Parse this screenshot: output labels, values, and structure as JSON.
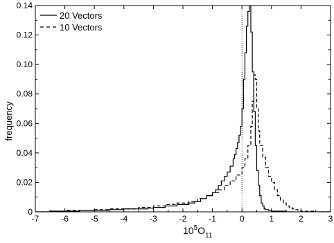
{
  "chart_data": {
    "type": "line",
    "title": "",
    "xlabel_base": "10",
    "xlabel_exp": "5",
    "xlabel_main": "O",
    "xlabel_sub": "11",
    "ylabel": "frequency",
    "xlim": [
      -7,
      3
    ],
    "ylim": [
      0,
      0.14
    ],
    "xticks": [
      -7,
      -6,
      -5,
      -4,
      -3,
      -2,
      -1,
      0,
      1,
      2,
      3
    ],
    "xtick_labels": [
      "-7",
      "-6",
      "-5",
      "-4",
      "-3",
      "-2",
      "-1",
      "0",
      "1",
      "2",
      "3"
    ],
    "yticks": [
      0,
      0.02,
      0.04,
      0.06,
      0.08,
      0.1,
      0.12,
      0.14
    ],
    "ytick_labels": [
      "0",
      "0.02",
      "0.04",
      "0.06",
      "0.08",
      "0.10",
      "0.12",
      "0.14"
    ],
    "legend_position": "top-left",
    "reference_line_x": 0,
    "series": [
      {
        "name": "20 Vectors",
        "style": "solid",
        "color": "#000000",
        "x": [
          -7,
          -6.5,
          -6,
          -5.5,
          -5,
          -4.5,
          -4,
          -3.5,
          -3.2,
          -3.0,
          -2.8,
          -2.6,
          -2.4,
          -2.2,
          -2.0,
          -1.8,
          -1.6,
          -1.4,
          -1.2,
          -1.0,
          -0.9,
          -0.8,
          -0.7,
          -0.6,
          -0.5,
          -0.4,
          -0.3,
          -0.25,
          -0.2,
          -0.15,
          -0.1,
          -0.05,
          0.0,
          0.05,
          0.1,
          0.15,
          0.2,
          0.25,
          0.3,
          0.35,
          0.4,
          0.45,
          0.5,
          0.55,
          0.6,
          0.65,
          0.7,
          0.75,
          0.8,
          0.9,
          1.0,
          1.2,
          1.5,
          2.0,
          2.5,
          3.0
        ],
        "y": [
          0,
          0.0005,
          0.0005,
          0.001,
          0.001,
          0.0015,
          0.002,
          0.002,
          0.0025,
          0.003,
          0.003,
          0.004,
          0.004,
          0.005,
          0.005,
          0.006,
          0.007,
          0.009,
          0.011,
          0.013,
          0.015,
          0.018,
          0.021,
          0.024,
          0.027,
          0.031,
          0.036,
          0.039,
          0.043,
          0.047,
          0.052,
          0.058,
          0.07,
          0.09,
          0.108,
          0.126,
          0.136,
          0.14,
          0.122,
          0.095,
          0.068,
          0.045,
          0.028,
          0.018,
          0.011,
          0.006,
          0.004,
          0.002,
          0.0015,
          0.001,
          0.0005,
          0.0005,
          0,
          0,
          0,
          0
        ]
      },
      {
        "name": "10 Vectors",
        "style": "dashed",
        "color": "#000000",
        "x": [
          -7,
          -6.5,
          -6,
          -5.5,
          -5,
          -4.5,
          -4,
          -3.5,
          -3.0,
          -2.6,
          -2.2,
          -1.8,
          -1.5,
          -1.2,
          -1.0,
          -0.8,
          -0.6,
          -0.4,
          -0.2,
          0.0,
          0.1,
          0.2,
          0.3,
          0.35,
          0.4,
          0.45,
          0.5,
          0.55,
          0.6,
          0.7,
          0.8,
          0.9,
          1.0,
          1.1,
          1.2,
          1.3,
          1.4,
          1.5,
          1.6,
          1.7,
          1.8,
          1.9,
          2.0,
          2.5,
          3.0
        ],
        "y": [
          0,
          0.0005,
          0.001,
          0.001,
          0.0015,
          0.002,
          0.002,
          0.003,
          0.004,
          0.005,
          0.006,
          0.007,
          0.009,
          0.011,
          0.013,
          0.015,
          0.018,
          0.021,
          0.025,
          0.03,
          0.036,
          0.045,
          0.058,
          0.075,
          0.093,
          0.09,
          0.07,
          0.055,
          0.045,
          0.037,
          0.03,
          0.024,
          0.02,
          0.015,
          0.011,
          0.008,
          0.006,
          0.004,
          0.003,
          0.002,
          0.0015,
          0.001,
          0.0005,
          0,
          0
        ]
      }
    ]
  }
}
